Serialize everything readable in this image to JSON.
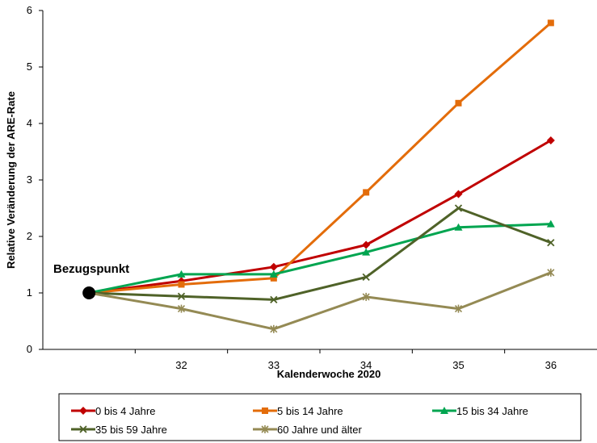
{
  "chart_data": {
    "type": "line",
    "xlabel": "Kalenderwoche 2020",
    "ylabel": "Relative Veränderung der ARE-Rate",
    "x_categories": [
      "",
      "32",
      "33",
      "34",
      "35",
      "36"
    ],
    "ylim": [
      0,
      6
    ],
    "yticks": [
      "0",
      "1",
      "2",
      "3",
      "4",
      "5",
      "6"
    ],
    "grid": false,
    "legend_position": "bottom",
    "annotation": {
      "text": "Bezugspunkt",
      "x_index": 0,
      "y": 1
    },
    "reference_point": {
      "x_index": 0,
      "y": 1,
      "color": "#000000"
    },
    "series": [
      {
        "name": "0 bis 4 Jahre",
        "color": "#C00000",
        "marker": "diamond",
        "values": [
          1.0,
          1.21,
          1.46,
          1.85,
          2.75,
          3.7
        ]
      },
      {
        "name": "5 bis 14 Jahre",
        "color": "#E36C0A",
        "marker": "square",
        "values": [
          1.0,
          1.15,
          1.26,
          2.78,
          4.36,
          5.78
        ]
      },
      {
        "name": "15 bis 34 Jahre",
        "color": "#00A550",
        "marker": "triangle",
        "values": [
          1.0,
          1.33,
          1.33,
          1.72,
          2.16,
          2.22
        ]
      },
      {
        "name": "35 bis 59 Jahre",
        "color": "#4F6228",
        "marker": "x",
        "values": [
          1.0,
          0.94,
          0.88,
          1.28,
          2.5,
          1.89
        ]
      },
      {
        "name": "60 Jahre und älter",
        "color": "#948A54",
        "marker": "star",
        "values": [
          1.0,
          0.72,
          0.36,
          0.93,
          0.72,
          1.36
        ]
      }
    ]
  }
}
